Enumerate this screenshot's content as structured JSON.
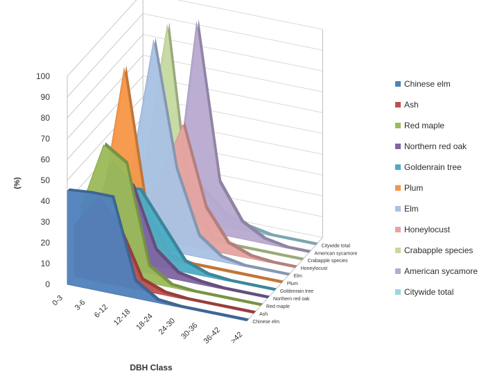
{
  "chart_data": {
    "type": "area",
    "title": "",
    "xlabel": "DBH Class",
    "ylabel": "(%)",
    "ylim": [
      0,
      100
    ],
    "yticks": [
      0,
      10,
      20,
      30,
      40,
      50,
      60,
      70,
      80,
      90,
      100
    ],
    "categories": [
      "0-3",
      "3-6",
      "6-12",
      "12-18",
      "18-24",
      "24-30",
      "30-36",
      "36-42",
      ">42"
    ],
    "grid": true,
    "legend_position": "right",
    "series": [
      {
        "name": "Chinese elm",
        "color": "#4f81bd",
        "values": [
          45,
          46,
          46,
          8,
          1,
          0,
          0,
          0,
          0
        ]
      },
      {
        "name": "Ash",
        "color": "#c0504d",
        "values": [
          25,
          40,
          28,
          5,
          1,
          0,
          0,
          0,
          0
        ]
      },
      {
        "name": "Red maple",
        "color": "#9bbb59",
        "values": [
          30,
          62,
          55,
          8,
          1,
          0,
          0,
          0,
          0
        ]
      },
      {
        "name": "Northern red oak",
        "color": "#8064a2",
        "values": [
          10,
          50,
          40,
          12,
          3,
          1,
          0,
          0,
          0
        ]
      },
      {
        "name": "Goldenrain tree",
        "color": "#4bacc6",
        "values": [
          2,
          34,
          35,
          20,
          5,
          1,
          0,
          0,
          0
        ]
      },
      {
        "name": "Plum",
        "color": "#f79646",
        "values": [
          20,
          88,
          20,
          2,
          0,
          0,
          0,
          0,
          0
        ]
      },
      {
        "name": "Elm",
        "color": "#a9c2e4",
        "values": [
          5,
          35,
          100,
          40,
          10,
          2,
          0,
          0,
          0
        ]
      },
      {
        "name": "Honeylocust",
        "color": "#e6a3a0",
        "values": [
          2,
          8,
          30,
          58,
          20,
          5,
          1,
          0,
          0
        ]
      },
      {
        "name": "Crabapple species",
        "color": "#c6d9a0",
        "values": [
          5,
          30,
          100,
          12,
          2,
          0,
          0,
          0,
          0
        ]
      },
      {
        "name": "American sycamore",
        "color": "#b8a9d0",
        "values": [
          0,
          2,
          10,
          100,
          25,
          8,
          2,
          0,
          0
        ]
      },
      {
        "name": "Citywide total",
        "color": "#9ed3e3",
        "values": [
          20,
          30,
          28,
          15,
          5,
          2,
          0,
          0,
          0
        ]
      }
    ]
  }
}
